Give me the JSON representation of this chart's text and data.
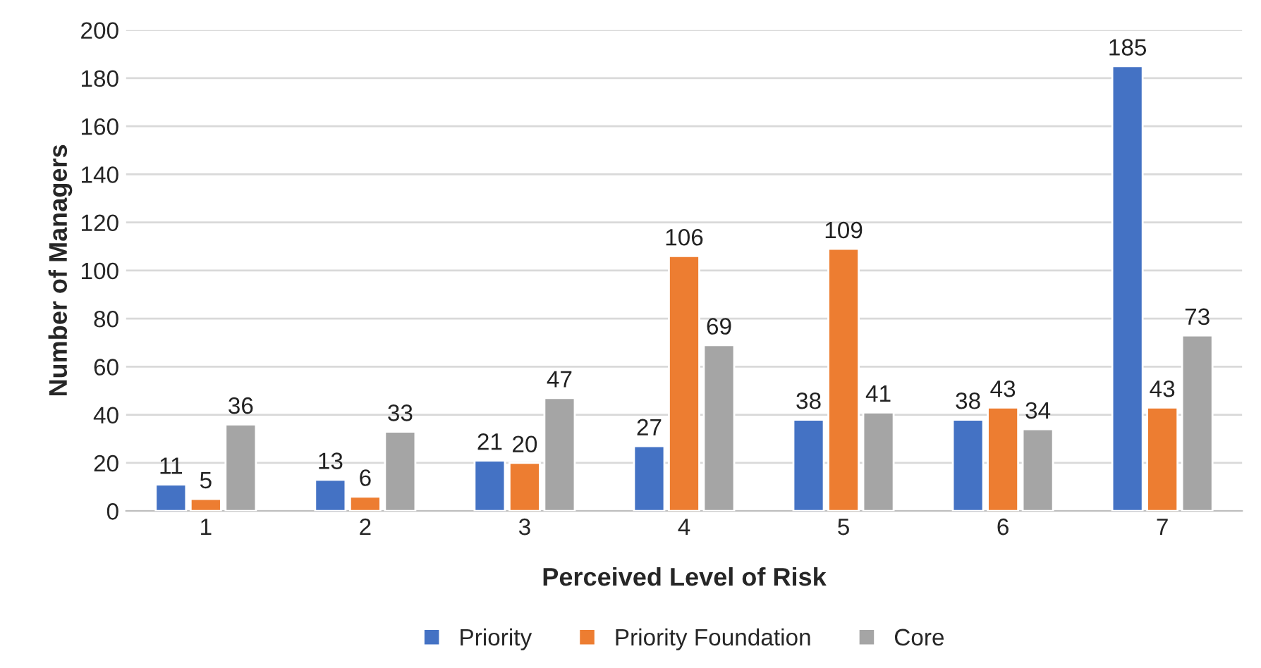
{
  "chart_data": {
    "type": "bar",
    "xlabel": "Perceived Level of Risk",
    "ylabel": "Number of Managers",
    "categories": [
      "1",
      "2",
      "3",
      "4",
      "5",
      "6",
      "7"
    ],
    "series": [
      {
        "name": "Priority",
        "color": "#4472c4",
        "values": [
          11,
          13,
          21,
          27,
          38,
          38,
          185
        ]
      },
      {
        "name": "Priority Foundation",
        "color": "#ed7d31",
        "values": [
          5,
          6,
          20,
          106,
          109,
          43,
          43
        ]
      },
      {
        "name": "Core",
        "color": "#a5a5a5",
        "values": [
          36,
          33,
          47,
          69,
          41,
          34,
          73
        ]
      }
    ],
    "ylim": [
      0,
      200
    ],
    "yticks": [
      0,
      20,
      40,
      60,
      80,
      100,
      120,
      140,
      160,
      180,
      200
    ],
    "grid": "y",
    "legend": "bottom",
    "data_labels": true
  }
}
